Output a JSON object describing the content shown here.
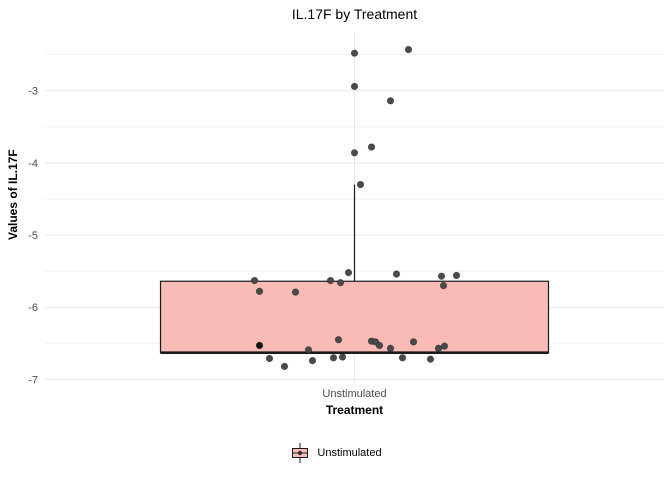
{
  "chart_data": {
    "type": "boxplot",
    "title": "IL.17F by Treatment",
    "xlabel": "Treatment",
    "ylabel": "Values of IL.17F",
    "categories": [
      "Unstimulated"
    ],
    "y_ticks": [
      -3,
      -4,
      -5,
      -6,
      -7
    ],
    "y_minor_ticks": [
      -2.5,
      -3.5,
      -4.5,
      -5.5,
      -6.5
    ],
    "ylim": [
      -7.05,
      -2.2
    ],
    "grid": true,
    "legend": {
      "position": "bottom",
      "entries": [
        "Unstimulated"
      ]
    },
    "series": [
      {
        "name": "Unstimulated",
        "box": {
          "q3": -5.64,
          "median": -6.63,
          "q1": -6.63,
          "whisker_high": -4.3,
          "whisker_low": -6.63
        },
        "points": [
          {
            "v": -2.48,
            "dx": 0
          },
          {
            "v": -2.43,
            "dx": 54
          },
          {
            "v": -2.94,
            "dx": 0
          },
          {
            "v": -3.14,
            "dx": 36
          },
          {
            "v": -3.78,
            "dx": 17
          },
          {
            "v": -3.86,
            "dx": 0
          },
          {
            "v": -4.3,
            "dx": 6
          },
          {
            "v": -5.52,
            "dx": -6
          },
          {
            "v": -5.54,
            "dx": 42
          },
          {
            "v": -5.56,
            "dx": 102
          },
          {
            "v": -5.57,
            "dx": 87
          },
          {
            "v": -5.63,
            "dx": -100
          },
          {
            "v": -5.63,
            "dx": -24
          },
          {
            "v": -5.66,
            "dx": -14
          },
          {
            "v": -5.7,
            "dx": 89
          },
          {
            "v": -5.78,
            "dx": -95
          },
          {
            "v": -5.79,
            "dx": -59
          },
          {
            "v": -6.45,
            "dx": -16
          },
          {
            "v": -6.47,
            "dx": 17
          },
          {
            "v": -6.48,
            "dx": 21
          },
          {
            "v": -6.48,
            "dx": 59
          },
          {
            "v": -6.53,
            "dx": -95,
            "dark": true
          },
          {
            "v": -6.53,
            "dx": 25
          },
          {
            "v": -6.54,
            "dx": 90
          },
          {
            "v": -6.57,
            "dx": 84
          },
          {
            "v": -6.57,
            "dx": 36
          },
          {
            "v": -6.59,
            "dx": -46
          },
          {
            "v": -6.69,
            "dx": -12
          },
          {
            "v": -6.7,
            "dx": 48
          },
          {
            "v": -6.7,
            "dx": -21
          },
          {
            "v": -6.72,
            "dx": 76
          },
          {
            "v": -6.74,
            "dx": -42
          },
          {
            "v": -6.71,
            "dx": -85
          },
          {
            "v": -6.82,
            "dx": -70
          }
        ]
      }
    ]
  },
  "colors": {
    "box_fill": "#F9BBB6",
    "box_border": "#1A1A1A",
    "point": "#4A4A4A",
    "point_dark": "#111111",
    "grid_major": "#E8E8E8",
    "grid_minor": "#F1F1F1",
    "tick_label": "#4D4D4D"
  }
}
